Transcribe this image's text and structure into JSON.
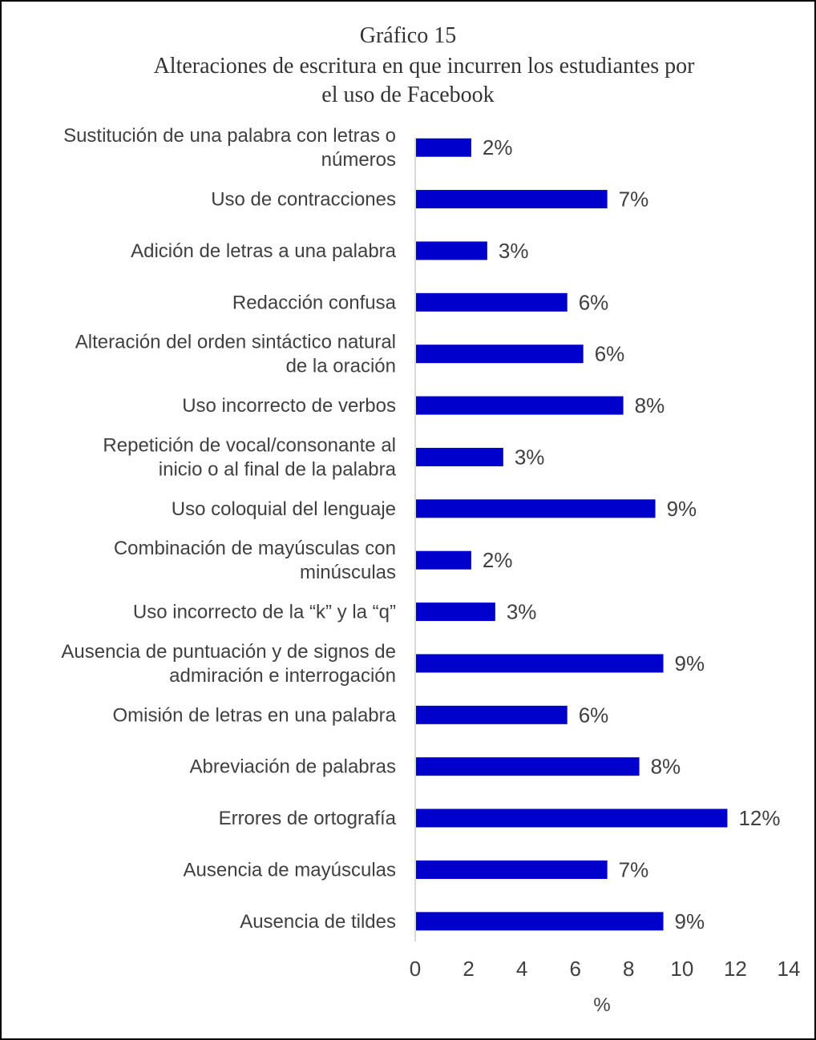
{
  "chart_data": {
    "type": "bar",
    "orientation": "horizontal",
    "title": "Gráfico 15",
    "subtitle_lines": [
      "Alteraciones de escritura en que incurren los estudiantes por",
      "el uso de Facebook"
    ],
    "xlabel": "%",
    "ylabel": "",
    "xlim": [
      0,
      14
    ],
    "xticks": [
      0,
      2,
      4,
      6,
      8,
      10,
      12,
      14
    ],
    "grid": false,
    "bar_color": "#0000CC",
    "categories": [
      [
        "Sustitución de una palabra con letras o",
        "números"
      ],
      [
        "Uso de contracciones"
      ],
      [
        "Adición de letras a una palabra"
      ],
      [
        "Redacción confusa"
      ],
      [
        "Alteración del orden sintáctico natural",
        "de la oración"
      ],
      [
        "Uso incorrecto de verbos"
      ],
      [
        "Repetición de vocal/consonante al",
        "inicio o al final de la palabra"
      ],
      [
        "Uso coloquial del lenguaje"
      ],
      [
        "Combinación de mayúsculas con",
        "minúsculas"
      ],
      [
        "Uso incorrecto de la “k” y la “q”"
      ],
      [
        "Ausencia de puntuación y de signos de",
        "admiración e interrogación"
      ],
      [
        "Omisión de letras en una palabra"
      ],
      [
        "Abreviación de palabras"
      ],
      [
        "Errores de ortografía"
      ],
      [
        "Ausencia de mayúsculas"
      ],
      [
        "Ausencia de tildes"
      ]
    ],
    "values": [
      2.1,
      7.2,
      2.7,
      5.7,
      6.3,
      7.8,
      3.3,
      9.0,
      2.1,
      3.0,
      9.3,
      5.7,
      8.4,
      11.7,
      7.2,
      9.3
    ],
    "data_labels": [
      "2%",
      "7%",
      "3%",
      "6%",
      "6%",
      "8%",
      "3%",
      "9%",
      "2%",
      "3%",
      "9%",
      "6%",
      "8%",
      "12%",
      "7%",
      "9%"
    ]
  }
}
